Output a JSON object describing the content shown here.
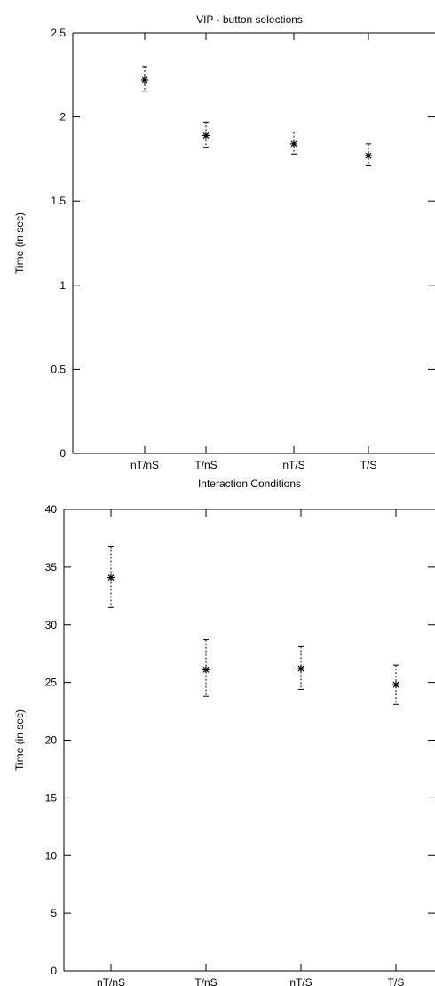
{
  "chart_data": [
    {
      "type": "scatter",
      "title": "VIP - button selections",
      "xlabel": "Interaction Conditions",
      "ylabel": "Time (in sec)",
      "categories": [
        "nT/nS",
        "T/nS",
        "nT/S",
        "T/S"
      ],
      "ylim": [
        0,
        2.5
      ],
      "yticks": [
        "0",
        "0.5",
        "1",
        "1.5",
        "2",
        "2.5"
      ],
      "series": [
        {
          "values": [
            2.22,
            1.89,
            1.84,
            1.77
          ],
          "err_low": [
            2.15,
            1.82,
            1.78,
            1.71
          ],
          "err_high": [
            2.3,
            1.97,
            1.91,
            1.84
          ]
        }
      ],
      "grid": false,
      "marker": "asterisk",
      "error_bars": true
    },
    {
      "type": "scatter",
      "title": "",
      "xlabel": "",
      "ylabel": "Time (in sec)",
      "categories": [
        "nT/nS",
        "T/nS",
        "nT/S",
        "T/S"
      ],
      "ylim": [
        0,
        40
      ],
      "yticks": [
        "0",
        "5",
        "10",
        "15",
        "20",
        "25",
        "30",
        "35",
        "40"
      ],
      "series": [
        {
          "values": [
            34.1,
            26.1,
            26.2,
            24.8
          ],
          "err_low": [
            31.5,
            23.8,
            24.4,
            23.1
          ],
          "err_high": [
            36.8,
            28.7,
            28.1,
            26.5
          ]
        }
      ],
      "grid": false,
      "marker": "asterisk",
      "error_bars": true
    }
  ]
}
